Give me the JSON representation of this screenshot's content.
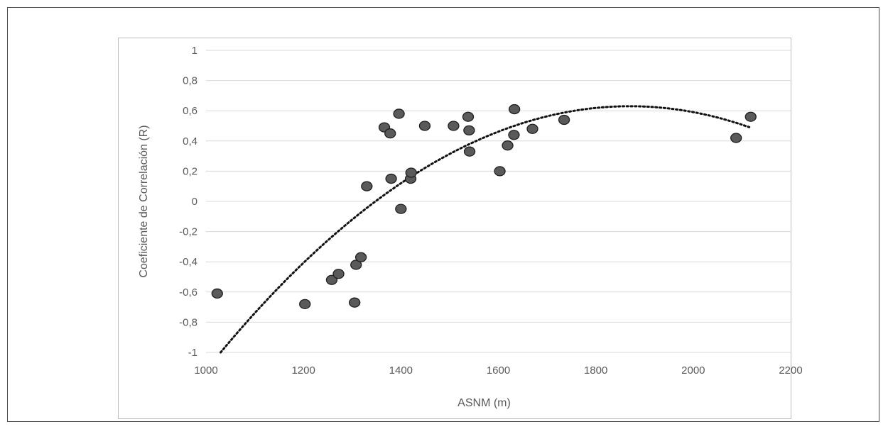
{
  "chart_data": {
    "type": "scatter",
    "title": "",
    "xlabel": "ASNM (m)",
    "ylabel": "Coeficiente de Correlación (R)",
    "xlim": [
      1000,
      2200
    ],
    "ylim": [
      -1,
      1
    ],
    "x_ticks": [
      1000,
      1200,
      1400,
      1600,
      1800,
      2000,
      2200
    ],
    "y_ticks": [
      -1,
      -0.8,
      -0.6,
      -0.4,
      -0.2,
      0,
      0.2,
      0.4,
      0.6,
      0.8,
      1
    ],
    "x_tick_labels": [
      "1000",
      "1200",
      "1400",
      "1600",
      "1800",
      "2000",
      "2200"
    ],
    "y_tick_labels": [
      "-1",
      "-0,8",
      "-0,6",
      "-0,4",
      "-0,2",
      "0",
      "0,2",
      "0,4",
      "0,6",
      "0,8",
      "1"
    ],
    "grid": "horizontal",
    "legend": "none",
    "point_color": "#5a5a5a",
    "point_edge_color": "#1e1e1e",
    "trend_color": "#111111",
    "series": [
      {
        "points": [
          [
            1023,
            -0.61
          ],
          [
            1203,
            -0.68
          ],
          [
            1258,
            -0.52
          ],
          [
            1272,
            -0.48
          ],
          [
            1305,
            -0.67
          ],
          [
            1308,
            -0.42
          ],
          [
            1318,
            -0.37
          ],
          [
            1330,
            0.1
          ],
          [
            1366,
            0.49
          ],
          [
            1378,
            0.45
          ],
          [
            1380,
            0.15
          ],
          [
            1396,
            0.58
          ],
          [
            1400,
            -0.05
          ],
          [
            1420,
            0.15
          ],
          [
            1421,
            0.19
          ],
          [
            1449,
            0.5
          ],
          [
            1508,
            0.5
          ],
          [
            1538,
            0.56
          ],
          [
            1540,
            0.47
          ],
          [
            1541,
            0.33
          ],
          [
            1603,
            0.2
          ],
          [
            1619,
            0.37
          ],
          [
            1632,
            0.44
          ],
          [
            1633,
            0.61
          ],
          [
            1670,
            0.48
          ],
          [
            1735,
            0.54
          ],
          [
            2088,
            0.42
          ],
          [
            2118,
            0.56
          ]
        ]
      }
    ],
    "trendline": {
      "type": "polynomial",
      "degree": 2,
      "x_range": [
        1030,
        2115
      ],
      "vertex": [
        1870,
        0.63
      ],
      "y_at_x_start": -1.0
    }
  }
}
